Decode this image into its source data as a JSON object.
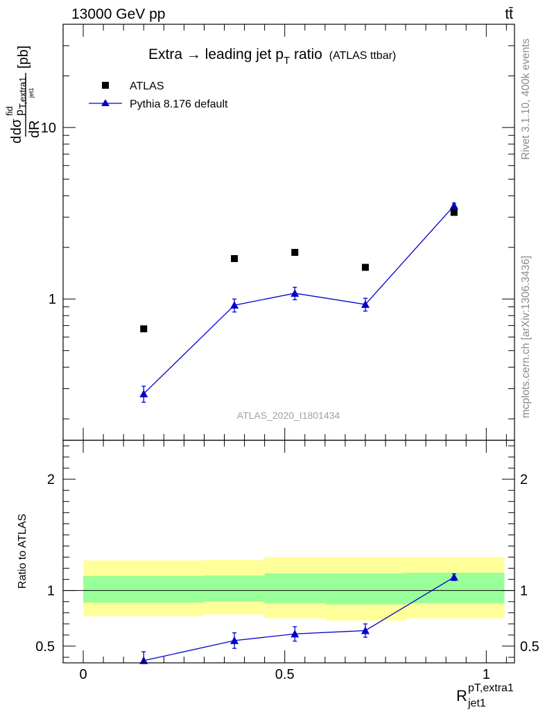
{
  "header": {
    "left": "13000 GeV pp",
    "right": "tt̄"
  },
  "side_labels": {
    "rivet": "Rivet 3.1.10,  400k events",
    "mcplots": "mcplots.cern.ch [arXiv:1306.3436]"
  },
  "chart_data": [
    {
      "type": "scatter",
      "title": "Extra → leading jet p",
      "title_sub": "T",
      "title_tail": " ratio",
      "title_small": "(ATLAS ttbar)",
      "watermark": "ATLAS_2020_I1801434",
      "ylabel": {
        "d1": "d",
        "dsigma": "dσ",
        "sup": "fid",
        "p": "p",
        "sub1": "T,extra1",
        "sub2": "jet1",
        "dR": "dR",
        "unit": "[pb]"
      },
      "yscale": "log",
      "ylim": [
        0.15,
        40
      ],
      "xlim": [
        -0.05,
        1.07
      ],
      "yticks": [
        1,
        10
      ],
      "ytick_labels": [
        "1",
        "10"
      ],
      "legend": {
        "placement": "top-left"
      },
      "series": [
        {
          "name": "ATLAS",
          "marker": "square",
          "color": "#000000",
          "x": [
            0.15,
            0.375,
            0.525,
            0.7,
            0.92
          ],
          "y": [
            0.67,
            1.72,
            1.87,
            1.53,
            3.2
          ]
        },
        {
          "name": "Pythia 8.176 default",
          "marker": "triangle",
          "color": "#0000cc",
          "x": [
            0.15,
            0.375,
            0.525,
            0.7,
            0.92
          ],
          "y": [
            0.28,
            0.92,
            1.08,
            0.93,
            3.5
          ],
          "yerr": [
            0.03,
            0.08,
            0.09,
            0.08,
            0.12
          ]
        }
      ]
    },
    {
      "type": "scatter",
      "ylabel": "Ratio to ATLAS",
      "xlabel": {
        "R": "R",
        "sup": "pT,extra1",
        "sub": "jet1"
      },
      "ylim": [
        0.35,
        2.35
      ],
      "xlim": [
        -0.05,
        1.07
      ],
      "yticks": [
        0.5,
        1,
        2
      ],
      "ytick_labels": [
        "0.5",
        "1",
        "2"
      ],
      "xticks": [
        0,
        0.5,
        1
      ],
      "xtick_labels": [
        "0",
        "0.5",
        "1"
      ],
      "bands": [
        {
          "x0": 0.0,
          "x1": 0.3,
          "green": [
            0.89,
            1.13
          ],
          "yellow": [
            0.77,
            1.27
          ]
        },
        {
          "x0": 0.3,
          "x1": 0.45,
          "green": [
            0.9,
            1.135
          ],
          "yellow": [
            0.785,
            1.275
          ]
        },
        {
          "x0": 0.45,
          "x1": 0.6,
          "green": [
            0.885,
            1.155
          ],
          "yellow": [
            0.75,
            1.3
          ]
        },
        {
          "x0": 0.6,
          "x1": 0.8,
          "green": [
            0.875,
            1.155
          ],
          "yellow": [
            0.73,
            1.3
          ]
        },
        {
          "x0": 0.8,
          "x1": 1.045,
          "green": [
            0.885,
            1.16
          ],
          "yellow": [
            0.75,
            1.3
          ]
        }
      ],
      "series": [
        {
          "name": "Pythia 8.176 default",
          "marker": "triangle",
          "color": "#0000cc",
          "x": [
            0.15,
            0.375,
            0.525,
            0.7,
            0.92
          ],
          "y": [
            0.37,
            0.55,
            0.61,
            0.64,
            1.12
          ],
          "yerr": [
            0.08,
            0.07,
            0.065,
            0.06,
            0.03
          ]
        }
      ]
    }
  ]
}
